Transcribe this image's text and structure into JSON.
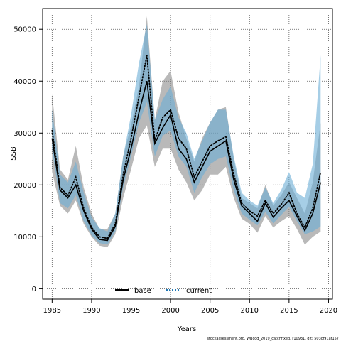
{
  "chart_data": {
    "type": "line",
    "title": "",
    "xlabel": "Years",
    "ylabel": "SSB",
    "xlim": [
      1983.8,
      2020.5
    ],
    "ylim": [
      -2000,
      54000
    ],
    "xticks": [
      1985,
      1990,
      1995,
      2000,
      2005,
      2010,
      2015,
      2020
    ],
    "yticks": [
      0,
      10000,
      20000,
      30000,
      40000,
      50000
    ],
    "grid": true,
    "legend_position": "bottom-center",
    "colors": {
      "base_line": "#000000",
      "current_line": "#1f77b4",
      "base_band": "#7f7f7f",
      "current_band": "#6baed6"
    },
    "x": [
      1985,
      1986,
      1987,
      1988,
      1989,
      1990,
      1991,
      1992,
      1993,
      1994,
      1995,
      1996,
      1997,
      1998,
      1999,
      2000,
      2001,
      2002,
      2003,
      2004,
      2005,
      2006,
      2007,
      2008,
      2009,
      2010,
      2011,
      2012,
      2013,
      2014,
      2015,
      2016,
      2017,
      2018,
      2019
    ],
    "series": [
      {
        "name": "base",
        "style": "solid",
        "values": [
          29000,
          19000,
          17500,
          20000,
          15000,
          11500,
          9500,
          9300,
          12000,
          21000,
          27000,
          34000,
          40000,
          28000,
          31000,
          33500,
          27000,
          25000,
          20500,
          23500,
          26500,
          27500,
          28500,
          21000,
          16000,
          14500,
          13000,
          16500,
          13800,
          15500,
          17000,
          14000,
          11200,
          14500,
          20500
        ],
        "lower": [
          22500,
          16000,
          14500,
          17000,
          12500,
          10000,
          8300,
          8000,
          10500,
          17500,
          23000,
          29000,
          31500,
          23500,
          27000,
          27000,
          23000,
          20500,
          17000,
          19000,
          22000,
          22000,
          23500,
          17500,
          13500,
          12500,
          10800,
          14000,
          11800,
          13000,
          14000,
          11500,
          8500,
          10000,
          11000
        ],
        "upper": [
          37500,
          23000,
          21000,
          27500,
          19500,
          14500,
          11500,
          11500,
          14500,
          25500,
          31500,
          39000,
          52500,
          32500,
          40000,
          42000,
          34000,
          29000,
          24500,
          29000,
          32000,
          34500,
          35000,
          25000,
          17500,
          16500,
          15500,
          20000,
          16000,
          18000,
          20500,
          17500,
          14500,
          20500,
          32000
        ]
      },
      {
        "name": "current",
        "style": "dotted",
        "values": [
          30500,
          19500,
          18000,
          21500,
          15500,
          11800,
          10000,
          9700,
          12500,
          22000,
          29000,
          37000,
          45000,
          28500,
          33000,
          34500,
          29000,
          27000,
          21500,
          24500,
          27500,
          28500,
          29300,
          22000,
          16500,
          15000,
          14000,
          17000,
          14500,
          16200,
          18500,
          14500,
          11800,
          15500,
          22500
        ],
        "lower": [
          27000,
          16500,
          15500,
          18000,
          13000,
          10300,
          8800,
          8500,
          11000,
          19500,
          25500,
          32000,
          36000,
          25500,
          29500,
          30500,
          25500,
          23500,
          18500,
          21500,
          24000,
          25000,
          25500,
          19000,
          14500,
          13300,
          12200,
          14800,
          12600,
          14200,
          15800,
          13000,
          10500,
          11000,
          12000
        ],
        "upper": [
          34500,
          22000,
          20500,
          24500,
          18500,
          13800,
          11700,
          11000,
          14500,
          25500,
          33500,
          43500,
          51000,
          32500,
          36500,
          39000,
          33000,
          30000,
          25000,
          28500,
          32000,
          34500,
          34500,
          25500,
          18500,
          17000,
          16000,
          19500,
          16500,
          19000,
          22500,
          18500,
          17500,
          24000,
          45000
        ]
      }
    ]
  },
  "footer_text": "stockassessment.org, WBcod_2019_catchfixed, r10931, git: 503cf91af157"
}
